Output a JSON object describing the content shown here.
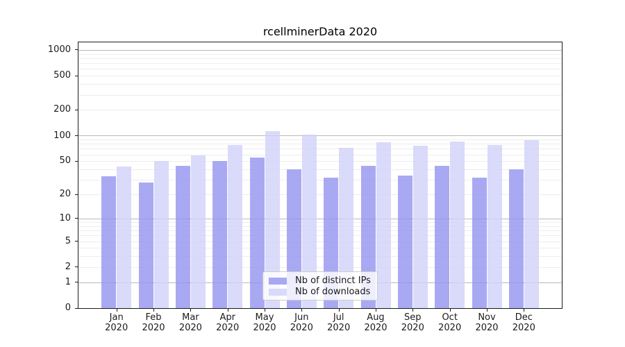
{
  "title": "rcellminerData 2020",
  "chart_data": {
    "type": "bar",
    "title": "rcellminerData 2020",
    "categories": [
      "Jan 2020",
      "Feb 2020",
      "Mar 2020",
      "Apr 2020",
      "May 2020",
      "Jun 2020",
      "Jul 2020",
      "Aug 2020",
      "Sep 2020",
      "Oct 2020",
      "Nov 2020",
      "Dec 2020"
    ],
    "series": [
      {
        "name": "Nb of distinct IPs",
        "color": "#9494f0",
        "fill_alpha": 0.8,
        "values": [
          33,
          28,
          44,
          50,
          55,
          40,
          32,
          44,
          34,
          44,
          32,
          40
        ]
      },
      {
        "name": "Nb of downloads",
        "color": "#d1d1f9",
        "fill_alpha": 0.8,
        "values": [
          43,
          50,
          59,
          77,
          114,
          102,
          72,
          84,
          76,
          86,
          77,
          89
        ]
      }
    ],
    "xlabel": "",
    "ylabel": "",
    "y_scale": "log10(value+1)",
    "y_ticks": [
      0,
      1,
      2,
      5,
      10,
      20,
      50,
      100,
      200,
      500,
      1000
    ],
    "y_major_gridlines": [
      1,
      10,
      100,
      1000
    ],
    "ylim": [
      0,
      1272
    ],
    "grid": true,
    "legend_position": "lower center"
  },
  "colors": {
    "grid_major": "#b9b9b9",
    "grid_minor": "#ededed",
    "spine": "#1a1a1a",
    "background": "#ffffff"
  }
}
